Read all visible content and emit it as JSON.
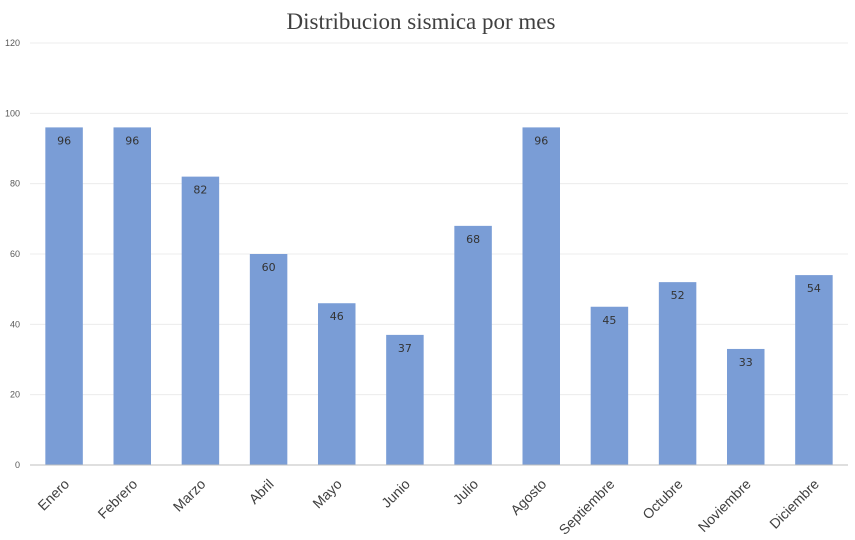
{
  "chart_data": {
    "type": "bar",
    "title": "Distribucion sismica por mes",
    "categories": [
      "Enero",
      "Febrero",
      "Marzo",
      "Abril",
      "Mayo",
      "Junio",
      "Julio",
      "Agosto",
      "Septiembre",
      "Octubre",
      "Noviembre",
      "Diciembre"
    ],
    "values": [
      96,
      96,
      82,
      60,
      46,
      37,
      68,
      96,
      45,
      52,
      33,
      54
    ],
    "ylim": [
      0,
      120
    ],
    "yticks": [
      0,
      20,
      40,
      60,
      80,
      100,
      120
    ],
    "grid": true,
    "legend": "none",
    "bar_color": "#7a9dd6",
    "data_labels": "inside-end"
  }
}
